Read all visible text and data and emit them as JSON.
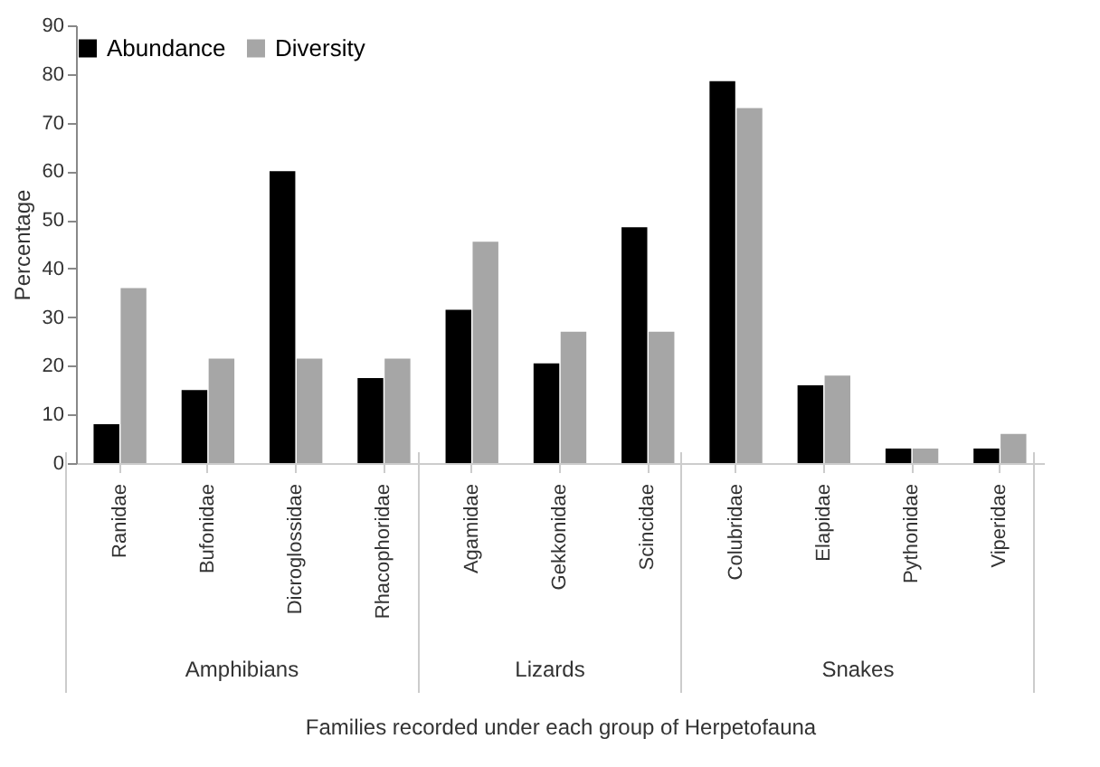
{
  "chart_data": {
    "type": "bar",
    "xlabel": "Families recorded under each group of Herpetofauna",
    "ylabel": "Percentage",
    "categories": [
      "Ranidae",
      "Bufonidae",
      "Dicroglossidae",
      "Rhacophoridae",
      "Agamidae",
      "Gekkonidae",
      "Scincidae",
      "Colubridae",
      "Elapidae",
      "Pythonidae",
      "Viperidae"
    ],
    "series": [
      {
        "name": "Abundance",
        "color": "#000000",
        "values": [
          8,
          15,
          60,
          17.5,
          31.5,
          20.5,
          48.5,
          78.5,
          16,
          3,
          3
        ]
      },
      {
        "name": "Diversity",
        "color": "#a6a6a6",
        "values": [
          36,
          21.5,
          21.5,
          21.5,
          45.5,
          27,
          27,
          73,
          18,
          3,
          6
        ]
      }
    ],
    "ylim": [
      0,
      90
    ],
    "yticks": [
      0,
      10,
      20,
      30,
      40,
      50,
      60,
      70,
      80,
      90
    ],
    "grid": false,
    "legend": "top",
    "annotations": [
      "Amphibians",
      "Lizards",
      "Snakes"
    ]
  }
}
